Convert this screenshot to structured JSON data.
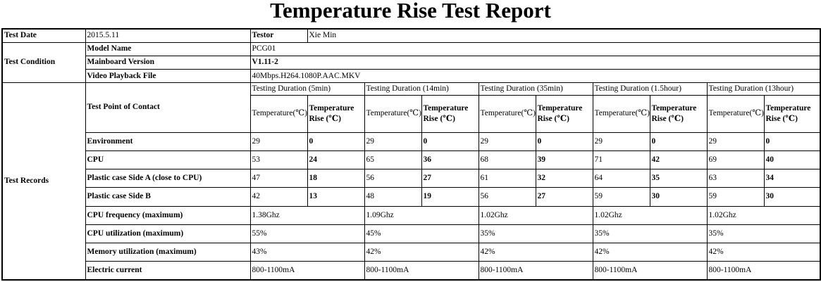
{
  "title": "Temperature Rise Test Report",
  "test_date": {
    "label": "Test Date",
    "value": "2015.5.11"
  },
  "testor": {
    "label": "Testor",
    "value": "Xie Min"
  },
  "test_condition": {
    "label": "Test Condition",
    "rows": [
      {
        "label": "Model Name",
        "value": "PCG01"
      },
      {
        "label": "Mainboard Version",
        "value": "V1.11-2"
      },
      {
        "label": "Video Playback File",
        "value": "40Mbps.H264.1080P.AAC.MKV"
      }
    ]
  },
  "test_records": {
    "label": "Test Records",
    "point_label": "Test Point of Contact",
    "durations": [
      "Testing Duration (5min)",
      "Testing Duration (14min)",
      "Testing Duration (35min)",
      "Testing Duration (1.5hour)",
      "Testing Duration (13hour)"
    ],
    "col_temp": "Temperature(℃)",
    "col_rise": "Temperature Rise (℃)",
    "pair_rows": [
      {
        "label": "Environment",
        "values": [
          [
            "29",
            "0"
          ],
          [
            "29",
            "0"
          ],
          [
            "29",
            "0"
          ],
          [
            "29",
            "0"
          ],
          [
            "29",
            "0"
          ]
        ]
      },
      {
        "label": "CPU",
        "values": [
          [
            "53",
            "24"
          ],
          [
            "65",
            "36"
          ],
          [
            "68",
            "39"
          ],
          [
            "71",
            "42"
          ],
          [
            "69",
            "40"
          ]
        ]
      },
      {
        "label": "Plastic case Side A (close to CPU)",
        "values": [
          [
            "47",
            "18"
          ],
          [
            "56",
            "27"
          ],
          [
            "61",
            "32"
          ],
          [
            "64",
            "35"
          ],
          [
            "63",
            "34"
          ]
        ]
      },
      {
        "label": "Plastic case Side B",
        "values": [
          [
            "42",
            "13"
          ],
          [
            "48",
            "19"
          ],
          [
            "56",
            "27"
          ],
          [
            "59",
            "30"
          ],
          [
            "59",
            "30"
          ]
        ]
      }
    ],
    "single_rows": [
      {
        "label": "CPU frequency (maximum)",
        "values": [
          "1.38Ghz",
          "1.09Ghz",
          "1.02Ghz",
          "1.02Ghz",
          "1.02Ghz"
        ]
      },
      {
        "label": "CPU utilization (maximum)",
        "values": [
          "55%",
          "45%",
          "35%",
          "35%",
          "35%"
        ]
      },
      {
        "label": "Memory utilization (maximum)",
        "values": [
          "43%",
          "42%",
          "42%",
          "42%",
          "42%"
        ]
      },
      {
        "label": "Electric current",
        "values": [
          "800-1100mA",
          "800-1100mA",
          "800-1100mA",
          "800-1100mA",
          "800-1100mA"
        ]
      }
    ]
  }
}
